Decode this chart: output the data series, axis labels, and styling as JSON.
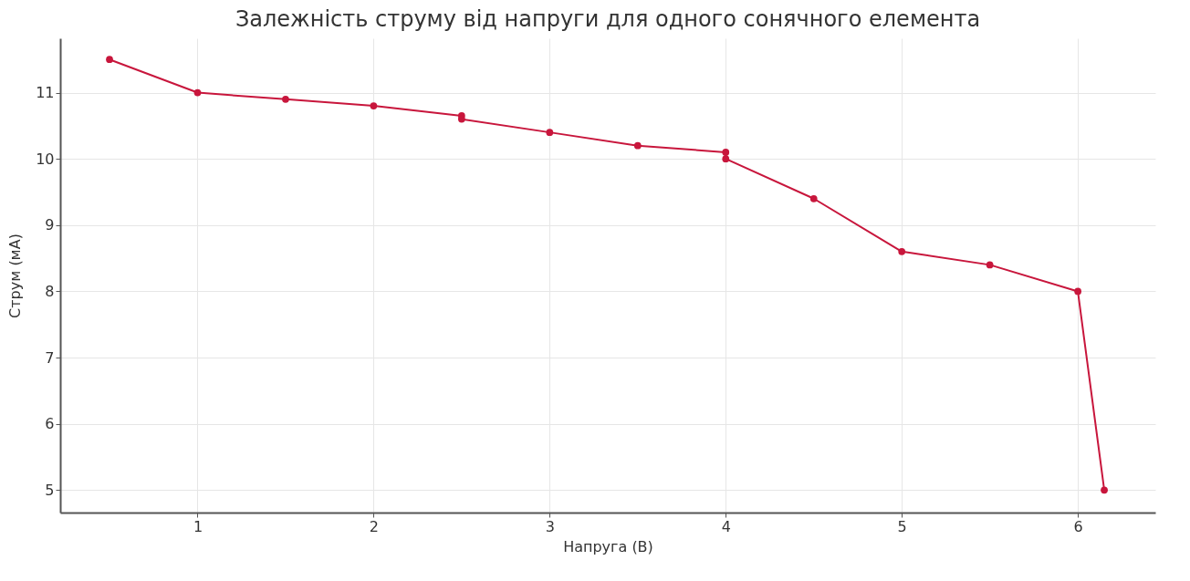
{
  "chart_data": {
    "type": "line",
    "title": "Залежність струму від напруги для одного сонячного елемента",
    "xlabel": "Напруга (В)",
    "ylabel": "Струм (мА)",
    "x": [
      0.5,
      1,
      1.5,
      2,
      2.5,
      2.5,
      3,
      3.5,
      4,
      4,
      4.5,
      5,
      5.5,
      6,
      6.15
    ],
    "series": [
      {
        "color": "#c8163c",
        "values": [
          11.5,
          11,
          10.9,
          10.8,
          10.65,
          10.6,
          10.4,
          10.2,
          10.1,
          10.0,
          9.4,
          8.6,
          8.4,
          8.0,
          5.0
        ]
      }
    ],
    "xlim": [
      0.22,
      6.44
    ],
    "ylim": [
      4.66,
      11.82
    ],
    "xticks": [
      1,
      2,
      3,
      4,
      5,
      6
    ],
    "yticks": [
      5,
      6,
      7,
      8,
      9,
      10,
      11
    ],
    "grid": true,
    "marker": "circle",
    "line_style": "solid"
  }
}
